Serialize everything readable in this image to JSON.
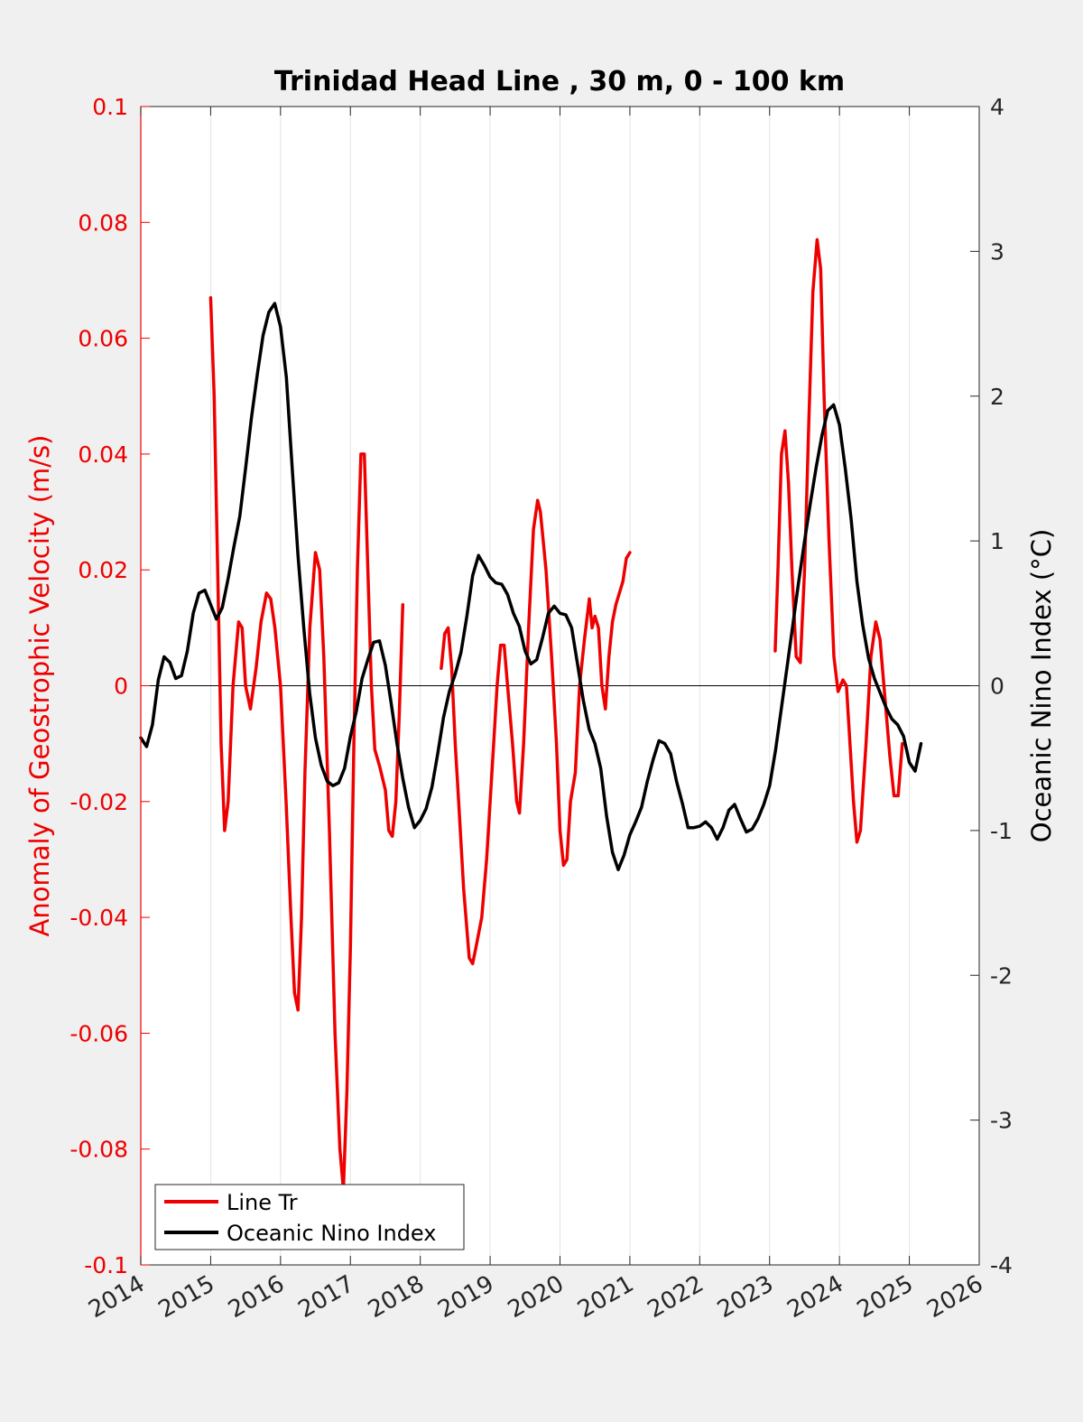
{
  "chart_data": {
    "type": "line",
    "title": "Trinidad Head Line , 30 m, 0 - 100 km",
    "xlabel": "",
    "ylabel_left": "Anomaly of Geostrophic Velocity (m/s)",
    "ylabel_right": "Oceanic Nino Index (°C)",
    "xlim": [
      2014,
      2026
    ],
    "ylim_left": [
      -0.1,
      0.1
    ],
    "ylim_right": [
      -4,
      4
    ],
    "x_ticks": [
      "2014",
      "2015",
      "2016",
      "2017",
      "2018",
      "2019",
      "2020",
      "2021",
      "2022",
      "2023",
      "2024",
      "2025",
      "2026"
    ],
    "y_left_ticks": [
      "0.1",
      "0.08",
      "0.06",
      "0.04",
      "0.02",
      "0",
      "-0.02",
      "-0.04",
      "-0.06",
      "-0.08",
      "-0.1"
    ],
    "y_right_ticks": [
      "4",
      "3",
      "2",
      "1",
      "0",
      "-1",
      "-2",
      "-3",
      "-4"
    ],
    "grid": "vertical",
    "zero_line": true,
    "legend_position": "bottom-left",
    "colors": {
      "line_tr": "#ee0000",
      "oni": "#000000",
      "left_axis": "#ee0000",
      "right_axis": "#000000"
    },
    "series": [
      {
        "name": "Line Tr",
        "axis": "left",
        "color": "#ee0000",
        "segments": [
          [
            [
              2015.0,
              0.067
            ],
            [
              2015.05,
              0.05
            ],
            [
              2015.1,
              0.02
            ],
            [
              2015.15,
              -0.01
            ],
            [
              2015.2,
              -0.025
            ],
            [
              2015.25,
              -0.02
            ],
            [
              2015.32,
              0.0
            ],
            [
              2015.4,
              0.011
            ],
            [
              2015.45,
              0.01
            ],
            [
              2015.5,
              0.0
            ],
            [
              2015.57,
              -0.004
            ],
            [
              2015.65,
              0.003
            ],
            [
              2015.72,
              0.011
            ],
            [
              2015.8,
              0.016
            ],
            [
              2015.86,
              0.015
            ],
            [
              2015.92,
              0.01
            ],
            [
              2016.0,
              0.0
            ],
            [
              2016.08,
              -0.02
            ],
            [
              2016.15,
              -0.04
            ],
            [
              2016.2,
              -0.053
            ],
            [
              2016.25,
              -0.056
            ],
            [
              2016.3,
              -0.04
            ],
            [
              2016.35,
              -0.015
            ],
            [
              2016.42,
              0.01
            ],
            [
              2016.5,
              0.023
            ],
            [
              2016.56,
              0.02
            ],
            [
              2016.62,
              0.005
            ],
            [
              2016.7,
              -0.025
            ],
            [
              2016.78,
              -0.06
            ],
            [
              2016.85,
              -0.08
            ],
            [
              2016.9,
              -0.087
            ],
            [
              2016.95,
              -0.07
            ],
            [
              2017.0,
              -0.045
            ],
            [
              2017.05,
              -0.01
            ],
            [
              2017.1,
              0.02
            ],
            [
              2017.15,
              0.04
            ],
            [
              2017.2,
              0.04
            ],
            [
              2017.25,
              0.02
            ],
            [
              2017.3,
              0.0
            ],
            [
              2017.35,
              -0.011
            ],
            [
              2017.42,
              -0.014
            ],
            [
              2017.5,
              -0.018
            ],
            [
              2017.55,
              -0.025
            ],
            [
              2017.6,
              -0.026
            ],
            [
              2017.65,
              -0.02
            ],
            [
              2017.7,
              -0.005
            ],
            [
              2017.75,
              0.014
            ]
          ],
          [
            [
              2018.3,
              0.003
            ],
            [
              2018.35,
              0.009
            ],
            [
              2018.4,
              0.01
            ],
            [
              2018.45,
              0.003
            ],
            [
              2018.5,
              -0.01
            ],
            [
              2018.55,
              -0.02
            ],
            [
              2018.62,
              -0.035
            ],
            [
              2018.7,
              -0.047
            ],
            [
              2018.75,
              -0.048
            ],
            [
              2018.8,
              -0.045
            ],
            [
              2018.88,
              -0.04
            ],
            [
              2018.95,
              -0.03
            ],
            [
              2019.0,
              -0.02
            ],
            [
              2019.05,
              -0.01
            ],
            [
              2019.1,
              0.0
            ],
            [
              2019.15,
              0.007
            ],
            [
              2019.2,
              0.007
            ],
            [
              2019.25,
              0.0
            ],
            [
              2019.32,
              -0.01
            ],
            [
              2019.38,
              -0.02
            ],
            [
              2019.42,
              -0.022
            ],
            [
              2019.48,
              -0.01
            ],
            [
              2019.55,
              0.01
            ],
            [
              2019.62,
              0.027
            ],
            [
              2019.68,
              0.032
            ],
            [
              2019.72,
              0.03
            ],
            [
              2019.8,
              0.02
            ],
            [
              2019.88,
              0.005
            ],
            [
              2019.95,
              -0.01
            ],
            [
              2020.0,
              -0.025
            ],
            [
              2020.05,
              -0.031
            ],
            [
              2020.1,
              -0.03
            ],
            [
              2020.15,
              -0.02
            ],
            [
              2020.22,
              -0.015
            ],
            [
              2020.28,
              0.0
            ],
            [
              2020.35,
              0.008
            ],
            [
              2020.42,
              0.015
            ],
            [
              2020.46,
              0.01
            ],
            [
              2020.5,
              0.012
            ],
            [
              2020.55,
              0.01
            ],
            [
              2020.6,
              0.0
            ],
            [
              2020.65,
              -0.004
            ],
            [
              2020.7,
              0.005
            ],
            [
              2020.75,
              0.011
            ],
            [
              2020.8,
              0.014
            ],
            [
              2020.85,
              0.016
            ],
            [
              2020.9,
              0.018
            ],
            [
              2020.95,
              0.022
            ],
            [
              2021.0,
              0.023
            ]
          ],
          [
            [
              2023.08,
              0.006
            ],
            [
              2023.12,
              0.02
            ],
            [
              2023.17,
              0.04
            ],
            [
              2023.22,
              0.044
            ],
            [
              2023.27,
              0.035
            ],
            [
              2023.32,
              0.02
            ],
            [
              2023.38,
              0.005
            ],
            [
              2023.44,
              0.004
            ],
            [
              2023.5,
              0.02
            ],
            [
              2023.56,
              0.045
            ],
            [
              2023.62,
              0.068
            ],
            [
              2023.68,
              0.077
            ],
            [
              2023.73,
              0.072
            ],
            [
              2023.78,
              0.05
            ],
            [
              2023.85,
              0.025
            ],
            [
              2023.92,
              0.005
            ],
            [
              2023.98,
              -0.001
            ],
            [
              2024.05,
              0.001
            ],
            [
              2024.1,
              0.0
            ],
            [
              2024.15,
              -0.01
            ],
            [
              2024.2,
              -0.02
            ],
            [
              2024.25,
              -0.027
            ],
            [
              2024.3,
              -0.025
            ],
            [
              2024.38,
              -0.01
            ],
            [
              2024.45,
              0.005
            ],
            [
              2024.52,
              0.011
            ],
            [
              2024.58,
              0.008
            ],
            [
              2024.65,
              -0.002
            ],
            [
              2024.72,
              -0.012
            ],
            [
              2024.78,
              -0.019
            ],
            [
              2024.84,
              -0.019
            ],
            [
              2024.9,
              -0.01
            ]
          ]
        ]
      },
      {
        "name": "Oceanic Nino Index",
        "axis": "right",
        "color": "#000000",
        "points": [
          [
            2014.0,
            -0.36
          ],
          [
            2014.083,
            -0.42
          ],
          [
            2014.167,
            -0.27
          ],
          [
            2014.25,
            0.04
          ],
          [
            2014.333,
            0.2
          ],
          [
            2014.417,
            0.16
          ],
          [
            2014.5,
            0.05
          ],
          [
            2014.583,
            0.07
          ],
          [
            2014.667,
            0.24
          ],
          [
            2014.75,
            0.5
          ],
          [
            2014.833,
            0.64
          ],
          [
            2014.917,
            0.66
          ],
          [
            2015.0,
            0.56
          ],
          [
            2015.083,
            0.46
          ],
          [
            2015.167,
            0.54
          ],
          [
            2015.25,
            0.74
          ],
          [
            2015.333,
            0.96
          ],
          [
            2015.417,
            1.17
          ],
          [
            2015.5,
            1.5
          ],
          [
            2015.583,
            1.85
          ],
          [
            2015.667,
            2.15
          ],
          [
            2015.75,
            2.42
          ],
          [
            2015.833,
            2.58
          ],
          [
            2015.917,
            2.64
          ],
          [
            2016.0,
            2.48
          ],
          [
            2016.083,
            2.13
          ],
          [
            2016.167,
            1.5
          ],
          [
            2016.25,
            0.9
          ],
          [
            2016.333,
            0.4
          ],
          [
            2016.417,
            -0.05
          ],
          [
            2016.5,
            -0.36
          ],
          [
            2016.583,
            -0.55
          ],
          [
            2016.667,
            -0.66
          ],
          [
            2016.75,
            -0.69
          ],
          [
            2016.833,
            -0.67
          ],
          [
            2016.917,
            -0.57
          ],
          [
            2017.0,
            -0.35
          ],
          [
            2017.083,
            -0.18
          ],
          [
            2017.167,
            0.05
          ],
          [
            2017.25,
            0.18
          ],
          [
            2017.333,
            0.3
          ],
          [
            2017.417,
            0.31
          ],
          [
            2017.5,
            0.14
          ],
          [
            2017.583,
            -0.12
          ],
          [
            2017.667,
            -0.4
          ],
          [
            2017.75,
            -0.64
          ],
          [
            2017.833,
            -0.84
          ],
          [
            2017.917,
            -0.98
          ],
          [
            2018.0,
            -0.93
          ],
          [
            2018.083,
            -0.85
          ],
          [
            2018.167,
            -0.7
          ],
          [
            2018.25,
            -0.47
          ],
          [
            2018.333,
            -0.22
          ],
          [
            2018.417,
            -0.04
          ],
          [
            2018.5,
            0.08
          ],
          [
            2018.583,
            0.23
          ],
          [
            2018.667,
            0.48
          ],
          [
            2018.75,
            0.76
          ],
          [
            2018.833,
            0.9
          ],
          [
            2018.917,
            0.83
          ],
          [
            2019.0,
            0.75
          ],
          [
            2019.083,
            0.71
          ],
          [
            2019.167,
            0.7
          ],
          [
            2019.25,
            0.63
          ],
          [
            2019.333,
            0.5
          ],
          [
            2019.417,
            0.41
          ],
          [
            2019.5,
            0.24
          ],
          [
            2019.583,
            0.15
          ],
          [
            2019.667,
            0.18
          ],
          [
            2019.75,
            0.33
          ],
          [
            2019.833,
            0.5
          ],
          [
            2019.917,
            0.55
          ],
          [
            2020.0,
            0.5
          ],
          [
            2020.083,
            0.49
          ],
          [
            2020.167,
            0.4
          ],
          [
            2020.25,
            0.15
          ],
          [
            2020.333,
            -0.1
          ],
          [
            2020.417,
            -0.3
          ],
          [
            2020.5,
            -0.4
          ],
          [
            2020.583,
            -0.57
          ],
          [
            2020.667,
            -0.9
          ],
          [
            2020.75,
            -1.15
          ],
          [
            2020.833,
            -1.27
          ],
          [
            2020.917,
            -1.17
          ],
          [
            2021.0,
            -1.03
          ],
          [
            2021.083,
            -0.94
          ],
          [
            2021.167,
            -0.84
          ],
          [
            2021.25,
            -0.66
          ],
          [
            2021.333,
            -0.51
          ],
          [
            2021.417,
            -0.38
          ],
          [
            2021.5,
            -0.4
          ],
          [
            2021.583,
            -0.47
          ],
          [
            2021.667,
            -0.66
          ],
          [
            2021.75,
            -0.81
          ],
          [
            2021.833,
            -0.98
          ],
          [
            2021.917,
            -0.98
          ],
          [
            2022.0,
            -0.97
          ],
          [
            2022.083,
            -0.94
          ],
          [
            2022.167,
            -0.98
          ],
          [
            2022.25,
            -1.06
          ],
          [
            2022.333,
            -0.98
          ],
          [
            2022.417,
            -0.86
          ],
          [
            2022.5,
            -0.82
          ],
          [
            2022.583,
            -0.92
          ],
          [
            2022.667,
            -1.01
          ],
          [
            2022.75,
            -0.99
          ],
          [
            2022.833,
            -0.92
          ],
          [
            2022.917,
            -0.82
          ],
          [
            2023.0,
            -0.69
          ],
          [
            2023.083,
            -0.45
          ],
          [
            2023.167,
            -0.16
          ],
          [
            2023.25,
            0.13
          ],
          [
            2023.333,
            0.42
          ],
          [
            2023.417,
            0.72
          ],
          [
            2023.5,
            1.0
          ],
          [
            2023.583,
            1.26
          ],
          [
            2023.667,
            1.51
          ],
          [
            2023.75,
            1.73
          ],
          [
            2023.833,
            1.9
          ],
          [
            2023.917,
            1.94
          ],
          [
            2024.0,
            1.8
          ],
          [
            2024.083,
            1.5
          ],
          [
            2024.167,
            1.15
          ],
          [
            2024.25,
            0.72
          ],
          [
            2024.333,
            0.42
          ],
          [
            2024.417,
            0.19
          ],
          [
            2024.5,
            0.05
          ],
          [
            2024.583,
            -0.05
          ],
          [
            2024.667,
            -0.15
          ],
          [
            2024.75,
            -0.23
          ],
          [
            2024.833,
            -0.27
          ],
          [
            2024.917,
            -0.35
          ],
          [
            2025.0,
            -0.53
          ],
          [
            2025.083,
            -0.59
          ],
          [
            2025.167,
            -0.4
          ]
        ]
      }
    ]
  }
}
